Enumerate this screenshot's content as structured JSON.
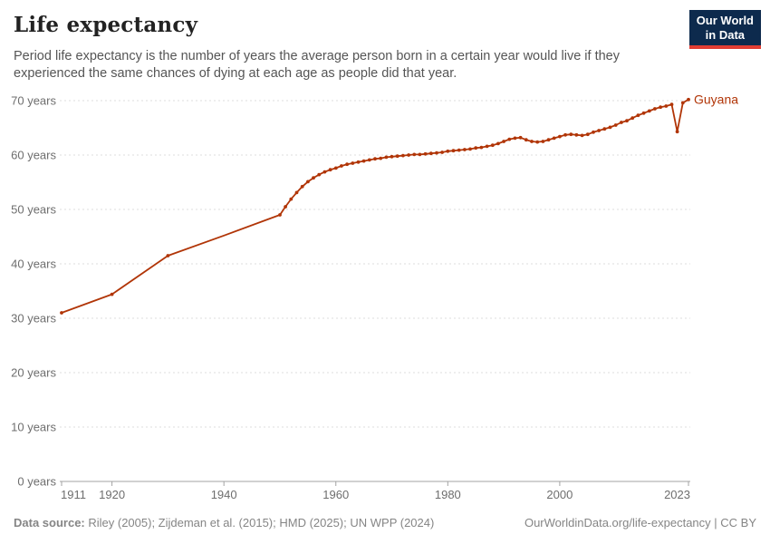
{
  "header": {
    "title": "Life expectancy",
    "subtitle": "Period life expectancy is the number of years the average person born in a certain year would live if they experienced the same chances of dying at each age as people did that year.",
    "logo": {
      "line1": "Our World",
      "line2": "in Data"
    }
  },
  "chart_data": {
    "type": "line",
    "title": "Life expectancy",
    "xlabel": "",
    "ylabel": "",
    "xlim": [
      1911,
      2023
    ],
    "ylim": [
      0,
      70
    ],
    "x_ticks": [
      1911,
      1920,
      1940,
      1960,
      1980,
      2000,
      2023
    ],
    "y_ticks": [
      0,
      10,
      20,
      30,
      40,
      50,
      60,
      70
    ],
    "y_tick_suffix": " years",
    "grid": "dashed-horizontal",
    "legend_position": "end-of-line-label",
    "series": [
      {
        "name": "Guyana",
        "color": "#b13507",
        "points": [
          [
            1911,
            31.0
          ],
          [
            1920,
            34.4
          ],
          [
            1930,
            41.5
          ],
          [
            1940,
            45.2
          ],
          [
            1950,
            49.0
          ],
          [
            1951,
            50.5
          ],
          [
            1952,
            51.9
          ],
          [
            1953,
            53.1
          ],
          [
            1954,
            54.2
          ],
          [
            1955,
            55.1
          ],
          [
            1956,
            55.8
          ],
          [
            1957,
            56.4
          ],
          [
            1958,
            56.9
          ],
          [
            1959,
            57.3
          ],
          [
            1960,
            57.6
          ],
          [
            1961,
            58.0
          ],
          [
            1962,
            58.3
          ],
          [
            1963,
            58.5
          ],
          [
            1964,
            58.7
          ],
          [
            1965,
            58.9
          ],
          [
            1966,
            59.1
          ],
          [
            1967,
            59.3
          ],
          [
            1968,
            59.4
          ],
          [
            1969,
            59.6
          ],
          [
            1970,
            59.7
          ],
          [
            1971,
            59.8
          ],
          [
            1972,
            59.9
          ],
          [
            1973,
            60.0
          ],
          [
            1974,
            60.1
          ],
          [
            1975,
            60.1
          ],
          [
            1976,
            60.2
          ],
          [
            1977,
            60.3
          ],
          [
            1978,
            60.4
          ],
          [
            1979,
            60.5
          ],
          [
            1980,
            60.7
          ],
          [
            1981,
            60.8
          ],
          [
            1982,
            60.9
          ],
          [
            1983,
            61.0
          ],
          [
            1984,
            61.1
          ],
          [
            1985,
            61.3
          ],
          [
            1986,
            61.4
          ],
          [
            1987,
            61.6
          ],
          [
            1988,
            61.8
          ],
          [
            1989,
            62.1
          ],
          [
            1990,
            62.5
          ],
          [
            1991,
            62.9
          ],
          [
            1992,
            63.1
          ],
          [
            1993,
            63.2
          ],
          [
            1994,
            62.8
          ],
          [
            1995,
            62.5
          ],
          [
            1996,
            62.4
          ],
          [
            1997,
            62.5
          ],
          [
            1998,
            62.8
          ],
          [
            1999,
            63.1
          ],
          [
            2000,
            63.4
          ],
          [
            2001,
            63.7
          ],
          [
            2002,
            63.8
          ],
          [
            2003,
            63.7
          ],
          [
            2004,
            63.6
          ],
          [
            2005,
            63.8
          ],
          [
            2006,
            64.2
          ],
          [
            2007,
            64.5
          ],
          [
            2008,
            64.8
          ],
          [
            2009,
            65.1
          ],
          [
            2010,
            65.5
          ],
          [
            2011,
            66.0
          ],
          [
            2012,
            66.3
          ],
          [
            2013,
            66.8
          ],
          [
            2014,
            67.3
          ],
          [
            2015,
            67.7
          ],
          [
            2016,
            68.1
          ],
          [
            2017,
            68.5
          ],
          [
            2018,
            68.8
          ],
          [
            2019,
            69.0
          ],
          [
            2020,
            69.3
          ],
          [
            2021,
            64.3
          ],
          [
            2022,
            69.6
          ],
          [
            2023,
            70.2
          ]
        ],
        "no_marker_years": [
          1940
        ]
      }
    ]
  },
  "footer": {
    "source_label": "Data source:",
    "source_text": " Riley (2005); Zijdeman et al. (2015); HMD (2025); UN WPP (2024)",
    "link": "OurWorldinData.org/life-expectancy",
    "separator": " | ",
    "license": "CC BY"
  },
  "colors": {
    "line": "#b13507",
    "title": "#222222",
    "subtitle": "#555555",
    "tick_text": "#6e6e6e",
    "grid": "#dcdcdc",
    "axis": "#a3a3a3",
    "footer_text": "#858585",
    "logo_bg": "#0d2a4d",
    "logo_accent": "#e13d33"
  }
}
